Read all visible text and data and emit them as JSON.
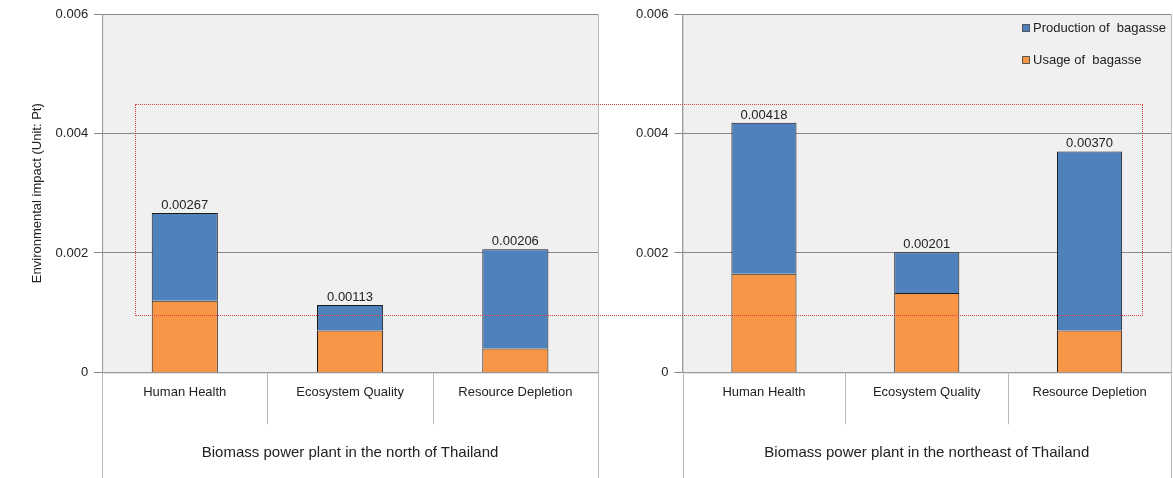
{
  "chart_data": [
    {
      "type": "bar",
      "stacked": true,
      "xlabel": "Biomass power plant in the north of Thailand",
      "ylabel": "Environmental impact (Unit: Pt)",
      "categories": [
        "Human Health",
        "Ecosystem Quality",
        "Resource Depletion"
      ],
      "series": [
        {
          "color": "#f79646",
          "values": [
            0.0012,
            0.0007,
            0.0004
          ]
        },
        {
          "color": "#4f81bd",
          "values": [
            0.00147,
            0.00043,
            0.00166
          ]
        }
      ],
      "totals": [
        "0.00267",
        "0.00113",
        "0.00206"
      ],
      "ylim": [
        0,
        0.006
      ],
      "yticks": [
        0,
        0.002,
        0.004,
        0.006
      ],
      "grid": "y"
    },
    {
      "type": "bar",
      "stacked": true,
      "xlabel": "Biomass power plant in the northeast of Thailand",
      "categories": [
        "Human Health",
        "Ecosystem Quality",
        "Resource Depletion"
      ],
      "series": [
        {
          "name": "Usage of  bagasse",
          "color": "#f79646",
          "values": [
            0.00165,
            0.00133,
            0.0007
          ]
        },
        {
          "name": "Production of  bagasse",
          "color": "#4f81bd",
          "values": [
            0.00253,
            0.00068,
            0.003
          ]
        }
      ],
      "totals": [
        "0.00418",
        "0.00201",
        "0.00370"
      ],
      "ylim": [
        0,
        0.006
      ],
      "yticks": [
        0,
        0.002,
        0.004,
        0.006
      ],
      "grid": "y",
      "legend": "top right"
    }
  ]
}
